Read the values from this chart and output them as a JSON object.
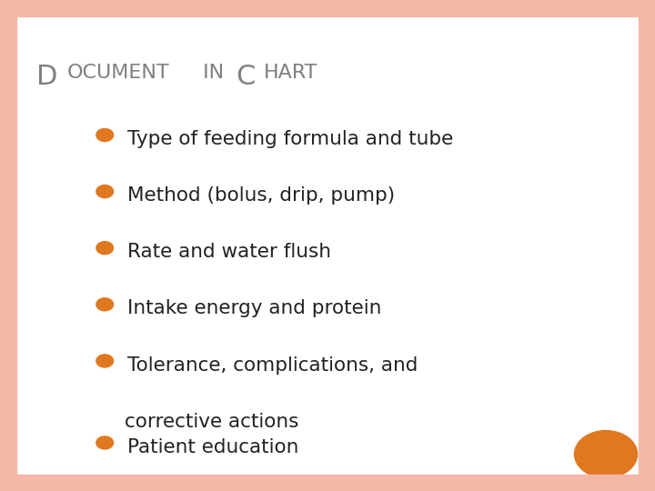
{
  "title": "Document in Chart",
  "title_small": "DOCUMENT IN CHART",
  "bullet_points": [
    "Type of feeding formula and tube",
    "Method (bolus, drip, pump)",
    "Rate and water flush",
    "Intake energy and protein",
    "Tolerance, complications, and\n   corrective actions",
    "Patient education"
  ],
  "background_color": "#ffffff",
  "border_color": "#f4b8a8",
  "title_color": "#808080",
  "bullet_color": "#e07820",
  "text_color": "#222222",
  "orange_circle_color": "#e07820",
  "title_fontsize": 22,
  "bullet_fontsize": 15.5,
  "border_width": 18
}
